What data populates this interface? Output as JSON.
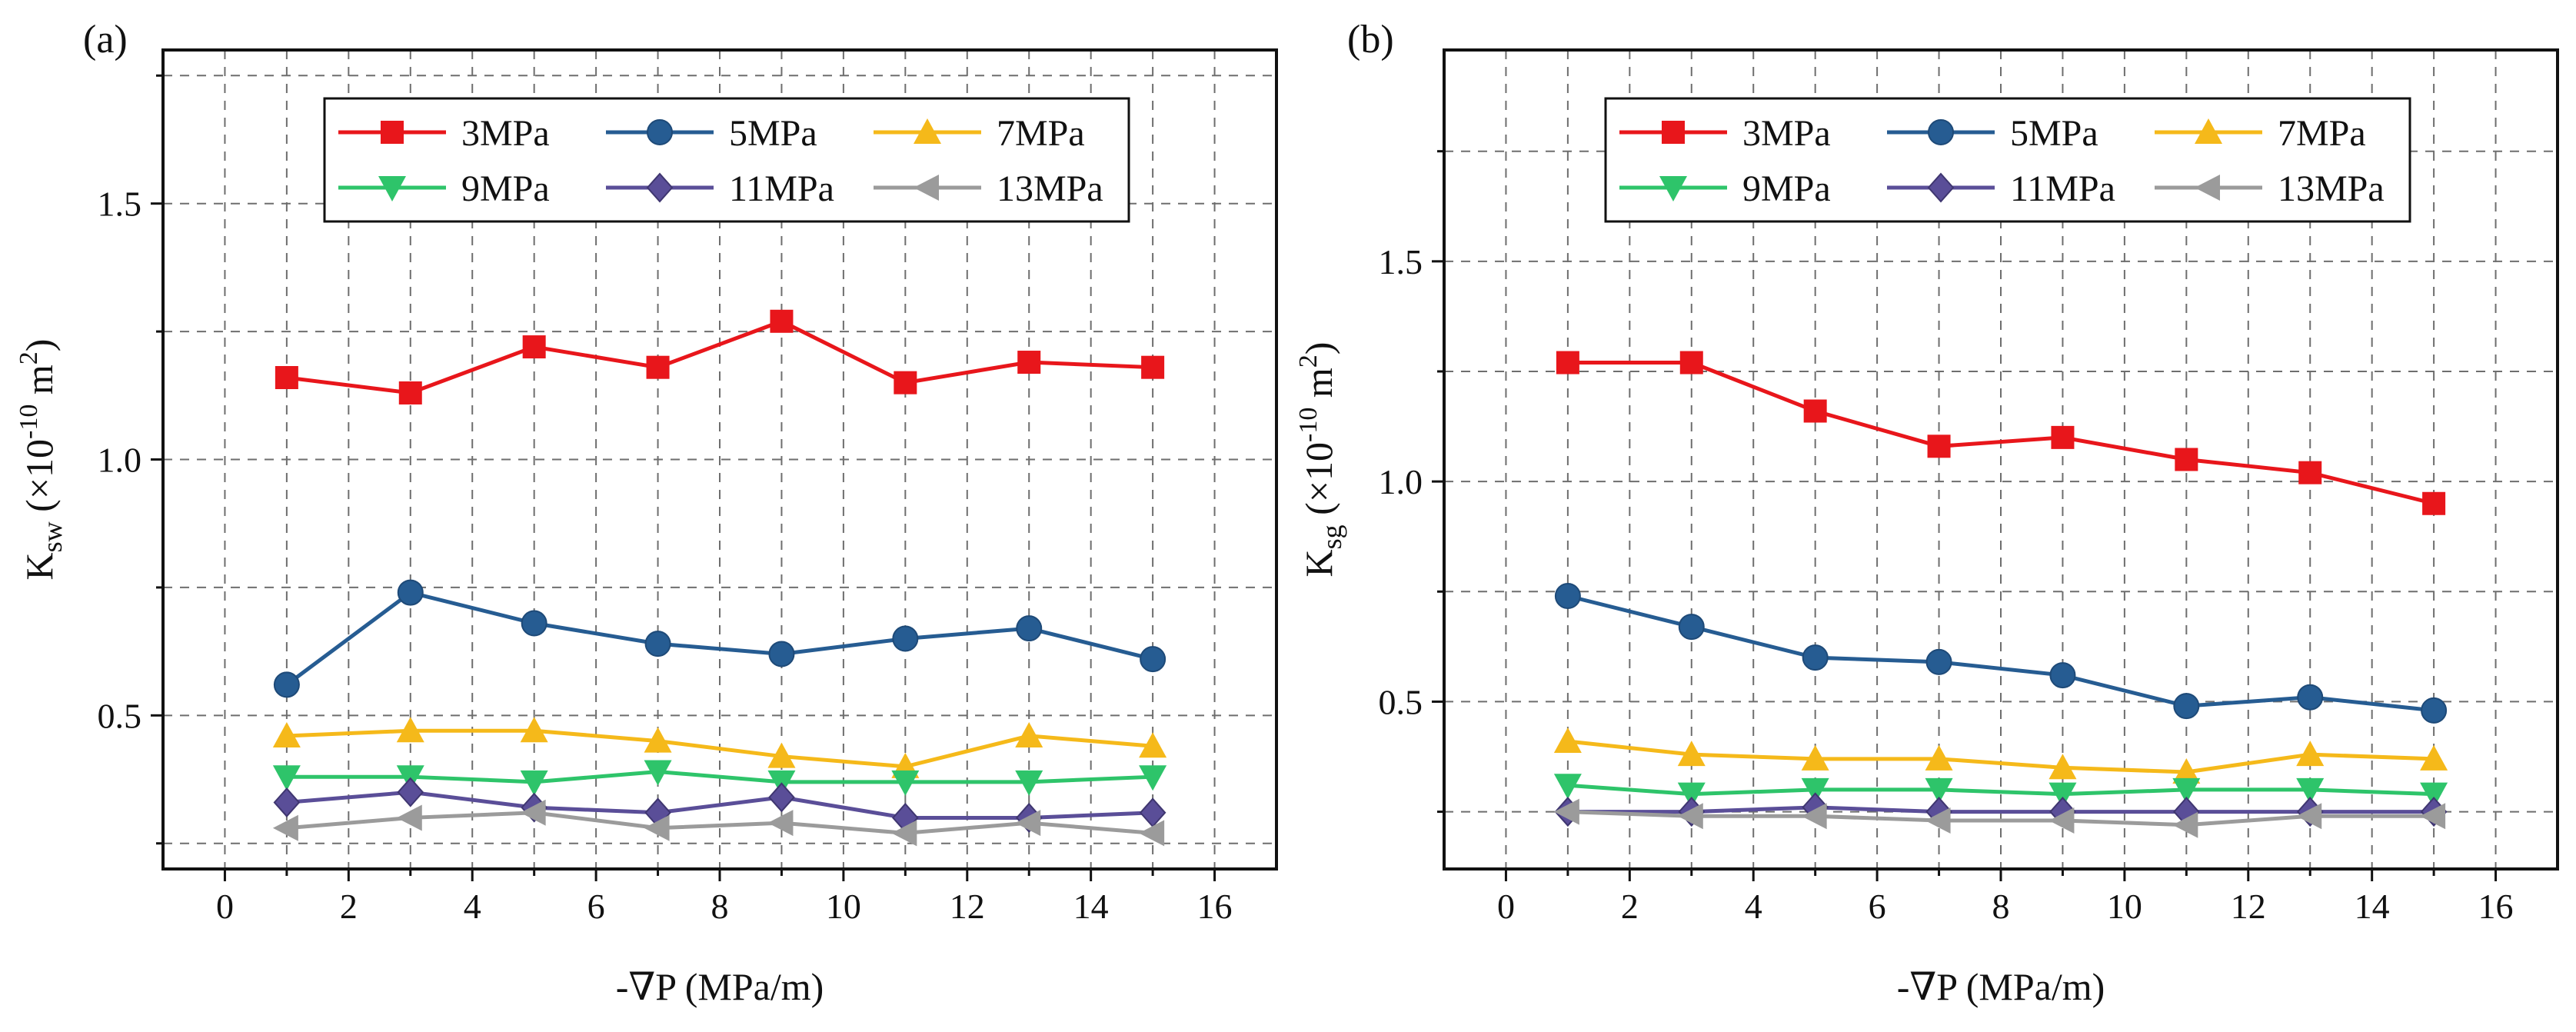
{
  "chart_data": [
    {
      "type": "line",
      "panel_label": "(a)",
      "title": "",
      "xlabel": "-∇P (MPa/m)",
      "ylabel_main": "K",
      "ylabel_sub": "sw",
      "ylabel_pre": " (×10",
      "ylabel_exp1": "-10",
      "ylabel_mid": " m",
      "ylabel_exp2": "2",
      "ylabel_post": ")",
      "xlim": [
        -1,
        17
      ],
      "ylim": [
        0.2,
        1.8
      ],
      "xticks": [
        0,
        2,
        4,
        6,
        8,
        10,
        12,
        14,
        16
      ],
      "xtick_labels": [
        "0",
        "2",
        "4",
        "6",
        "8",
        "10",
        "12",
        "14",
        "16"
      ],
      "yticks": [
        0.5,
        1.0,
        1.5
      ],
      "ytick_labels": [
        "0.5",
        "1.0",
        "1.5"
      ],
      "grid": true,
      "legend_position": "top",
      "x": [
        1,
        3,
        5,
        7,
        9,
        11,
        13,
        15
      ],
      "series": [
        {
          "name": "3MPa",
          "values": [
            1.16,
            1.13,
            1.22,
            1.18,
            1.27,
            1.15,
            1.19,
            1.18
          ]
        },
        {
          "name": "5MPa",
          "values": [
            0.56,
            0.74,
            0.68,
            0.64,
            0.62,
            0.65,
            0.67,
            0.61
          ]
        },
        {
          "name": "7MPa",
          "values": [
            0.46,
            0.47,
            0.47,
            0.45,
            0.42,
            0.4,
            0.46,
            0.44
          ]
        },
        {
          "name": "9MPa",
          "values": [
            0.38,
            0.38,
            0.37,
            0.39,
            0.37,
            0.37,
            0.37,
            0.38
          ]
        },
        {
          "name": "11MPa",
          "values": [
            0.33,
            0.35,
            0.32,
            0.31,
            0.34,
            0.3,
            0.3,
            0.31
          ]
        },
        {
          "name": "13MPa",
          "values": [
            0.28,
            0.3,
            0.31,
            0.28,
            0.29,
            0.27,
            0.29,
            0.27
          ]
        }
      ]
    },
    {
      "type": "line",
      "panel_label": "(b)",
      "title": "",
      "xlabel": "-∇P (MPa/m)",
      "ylabel_main": "K",
      "ylabel_sub": "sg",
      "ylabel_pre": " (×10",
      "ylabel_exp1": "-10",
      "ylabel_mid": " m",
      "ylabel_exp2": "2",
      "ylabel_post": ")",
      "xlim": [
        -1,
        17
      ],
      "ylim": [
        0.12,
        1.98
      ],
      "xticks": [
        0,
        2,
        4,
        6,
        8,
        10,
        12,
        14,
        16
      ],
      "xtick_labels": [
        "0",
        "2",
        "4",
        "6",
        "8",
        "10",
        "12",
        "14",
        "16"
      ],
      "yticks": [
        0.5,
        1.0,
        1.5
      ],
      "ytick_labels": [
        "0.5",
        "1.0",
        "1.5"
      ],
      "grid": true,
      "legend_position": "top",
      "x": [
        1,
        3,
        5,
        7,
        9,
        11,
        13,
        15
      ],
      "series": [
        {
          "name": "3MPa",
          "values": [
            1.27,
            1.27,
            1.16,
            1.08,
            1.1,
            1.05,
            1.02,
            0.95
          ]
        },
        {
          "name": "5MPa",
          "values": [
            0.74,
            0.67,
            0.6,
            0.59,
            0.56,
            0.49,
            0.51,
            0.48
          ]
        },
        {
          "name": "7MPa",
          "values": [
            0.41,
            0.38,
            0.37,
            0.37,
            0.35,
            0.34,
            0.38,
            0.37
          ]
        },
        {
          "name": "9MPa",
          "values": [
            0.31,
            0.29,
            0.3,
            0.3,
            0.29,
            0.3,
            0.3,
            0.29
          ]
        },
        {
          "name": "11MPa",
          "values": [
            0.25,
            0.25,
            0.26,
            0.25,
            0.25,
            0.25,
            0.25,
            0.25
          ]
        },
        {
          "name": "13MPa",
          "values": [
            0.25,
            0.24,
            0.24,
            0.23,
            0.23,
            0.22,
            0.24,
            0.24
          ]
        }
      ]
    }
  ],
  "series_styles": [
    {
      "color": "#e8161b",
      "marker": "square"
    },
    {
      "color": "#265c92",
      "marker": "circle"
    },
    {
      "color": "#f5b91a",
      "marker": "triangle-up"
    },
    {
      "color": "#2ec46a",
      "marker": "triangle-down"
    },
    {
      "color": "#5a4e98",
      "marker": "diamond"
    },
    {
      "color": "#9b9b9b",
      "marker": "triangle-left"
    }
  ]
}
